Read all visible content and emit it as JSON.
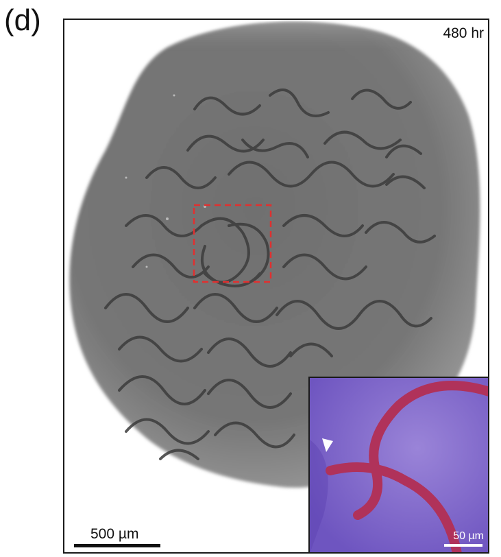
{
  "figure": {
    "panel_label": "(d)",
    "time_label": "480 hr",
    "scalebar_main": "500 µm",
    "scalebar_inset": "50 µm"
  },
  "colors": {
    "tissue": "#6f6f6f",
    "channel_dark": "#3a3a3a",
    "highlight_box": "#e03030",
    "inset_background": "#7c63c9",
    "inset_channel": "#b0325a",
    "arrowhead": "#ffffff"
  },
  "icons": [
    "arrowhead-icon"
  ]
}
